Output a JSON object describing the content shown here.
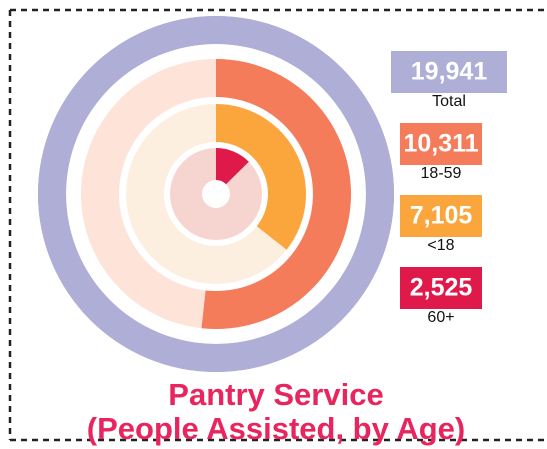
{
  "chart_data": {
    "type": "radial_bar",
    "title": "Pantry Service",
    "subtitle": "(People Assisted, by Age)",
    "categories": [
      "Total",
      "18-59",
      "<18",
      "60+"
    ],
    "values": [
      19941,
      10311,
      7105,
      2525
    ],
    "value_labels": [
      "19,941",
      "10,311",
      "7,105",
      "2,525"
    ],
    "colors": [
      "#aeaed6",
      "#f47c5a",
      "#fba63c",
      "#e0194b"
    ],
    "track_colors": [
      "#aeaed6",
      "#fde3d8",
      "#fdefe0",
      "#f6d5d0"
    ]
  }
}
